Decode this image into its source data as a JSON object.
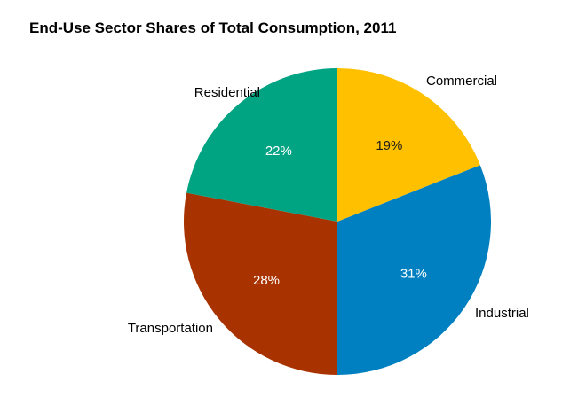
{
  "chart_data": {
    "type": "pie",
    "title": "End-Use Sector Shares of Total Consumption, 2011",
    "slices": [
      {
        "label": "Commercial",
        "value": 19,
        "value_label": "19%",
        "color": "#FFC000",
        "text_color": "#1a1a1a"
      },
      {
        "label": "Industrial",
        "value": 31,
        "value_label": "31%",
        "color": "#0080C0",
        "text_color": "#ffffff"
      },
      {
        "label": "Transportation",
        "value": 28,
        "value_label": "28%",
        "color": "#A83300",
        "text_color": "#ffffff"
      },
      {
        "label": "Residential",
        "value": 22,
        "value_label": "22%",
        "color": "#00A382",
        "text_color": "#ffffff"
      }
    ],
    "start_angle": "12 o'clock",
    "direction": "clockwise",
    "legend": "none"
  }
}
